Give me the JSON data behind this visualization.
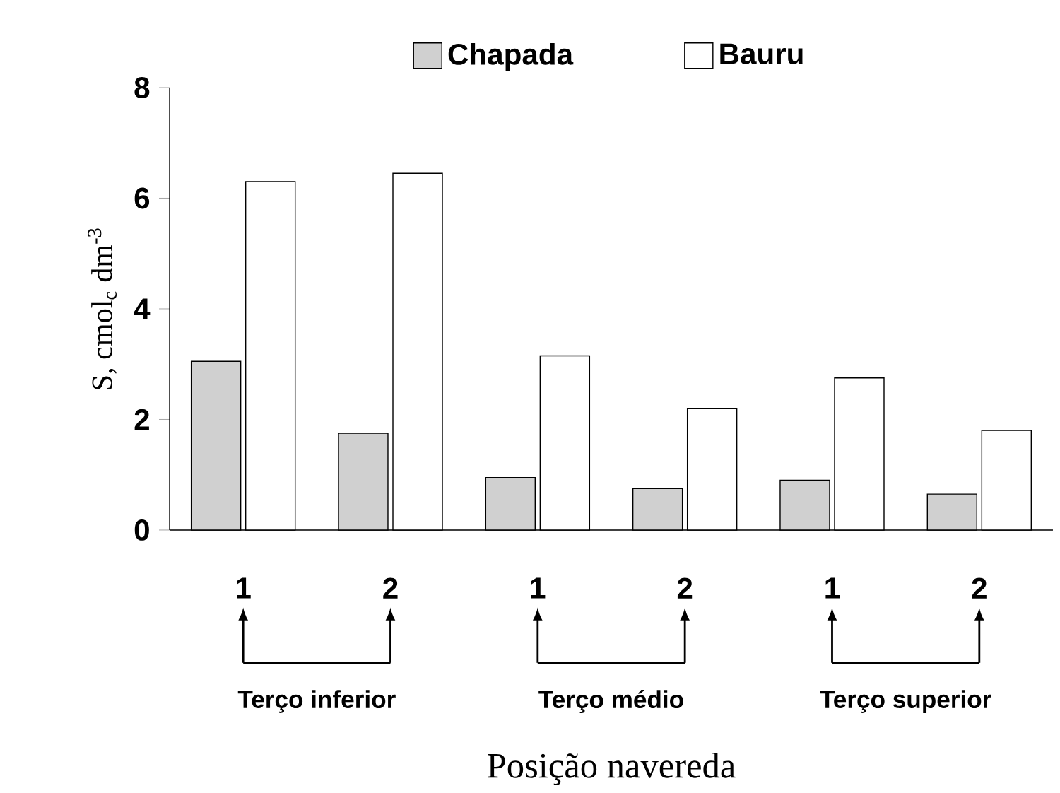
{
  "chart_data": {
    "type": "bar",
    "xlabel": "Posição navereda",
    "ylabel": "S, cmol$_{c}$ dm$^{-3}$",
    "categories": [
      "1",
      "2",
      "1",
      "2",
      "1",
      "2"
    ],
    "series": [
      {
        "name": "Chapada",
        "color": "#d0d0d0",
        "values": [
          3.05,
          1.75,
          0.95,
          0.75,
          0.9,
          0.65
        ]
      },
      {
        "name": "Bauru",
        "color": "#ffffff",
        "values": [
          6.3,
          6.45,
          3.15,
          2.2,
          2.75,
          1.8
        ]
      }
    ],
    "annotations": [
      "Terço inferior",
      "Terço médio",
      "Terço superior"
    ],
    "ylim": [
      0,
      8
    ],
    "yticks": [
      0,
      2,
      4,
      6,
      8
    ],
    "legend": "top",
    "grid": false
  }
}
